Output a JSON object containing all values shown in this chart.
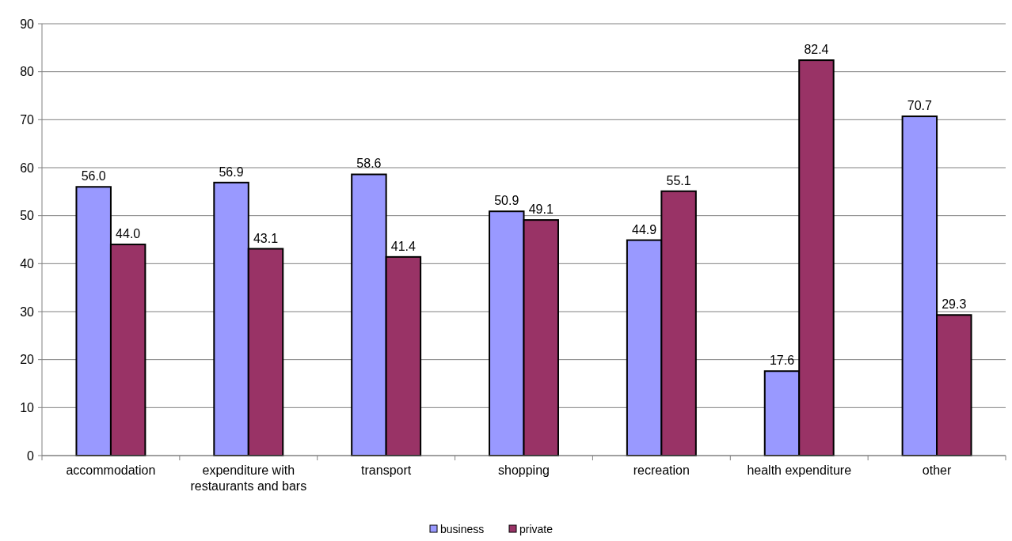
{
  "chart_data": {
    "type": "bar",
    "categories": [
      "accommodation",
      "expenditure with restaurants and bars",
      "transport",
      "shopping",
      "recreation",
      "health expenditure",
      "other"
    ],
    "series": [
      {
        "name": "business",
        "color": "#9999ff",
        "values": [
          56.0,
          56.9,
          58.6,
          50.9,
          44.9,
          17.6,
          70.7
        ],
        "value_labels": [
          "56.0",
          "56.9",
          "58.6",
          "50.9",
          "44.9",
          "17.6",
          "70.7"
        ]
      },
      {
        "name": "private",
        "color": "#993366",
        "values": [
          44.0,
          43.1,
          41.4,
          49.1,
          55.1,
          82.4,
          29.3
        ],
        "value_labels": [
          "44.0",
          "43.1",
          "41.4",
          "49.1",
          "55.1",
          "82.4",
          "29.3"
        ]
      }
    ],
    "ylim": [
      0,
      90
    ],
    "yticks": [
      0,
      10,
      20,
      30,
      40,
      50,
      60,
      70,
      80,
      90
    ],
    "grid": "y",
    "legend": "bottom"
  }
}
